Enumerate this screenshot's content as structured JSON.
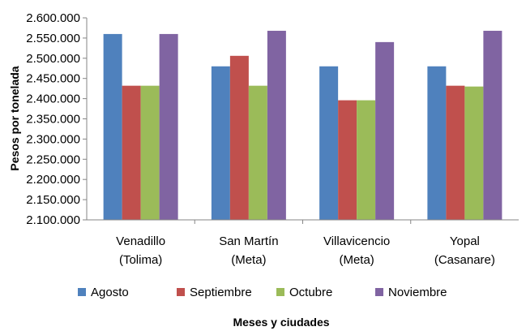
{
  "chart_data": {
    "type": "bar",
    "categories": [
      [
        "Venadillo",
        "(Tolima)"
      ],
      [
        "San Martín",
        "(Meta)"
      ],
      [
        "Villavicencio",
        "(Meta)"
      ],
      [
        "Yopal",
        "(Casanare)"
      ]
    ],
    "series": [
      {
        "name": "Agosto",
        "color": "#4F81BD",
        "values": [
          2560000,
          2480000,
          2480000,
          2480000
        ]
      },
      {
        "name": "Septiembre",
        "color": "#C0504D",
        "values": [
          2432000,
          2506000,
          2396000,
          2432000
        ]
      },
      {
        "name": "Octubre",
        "color": "#9BBB59",
        "values": [
          2432000,
          2432000,
          2396000,
          2430000
        ]
      },
      {
        "name": "Noviembre",
        "color": "#8064A2",
        "values": [
          2560000,
          2568000,
          2540000,
          2568000
        ]
      }
    ],
    "xlabel": "Meses y ciudades",
    "ylabel": "Pesos por tonelada",
    "ylim": [
      2100000,
      2600000
    ],
    "ytick_step": 50000,
    "ytick_labels": [
      "2.100.000",
      "2.150.000",
      "2.200.000",
      "2.250.000",
      "2.300.000",
      "2.350.000",
      "2.400.000",
      "2.450.000",
      "2.500.000",
      "2.550.000",
      "2.600.000"
    ],
    "grid": false,
    "legend_position": "bottom"
  }
}
